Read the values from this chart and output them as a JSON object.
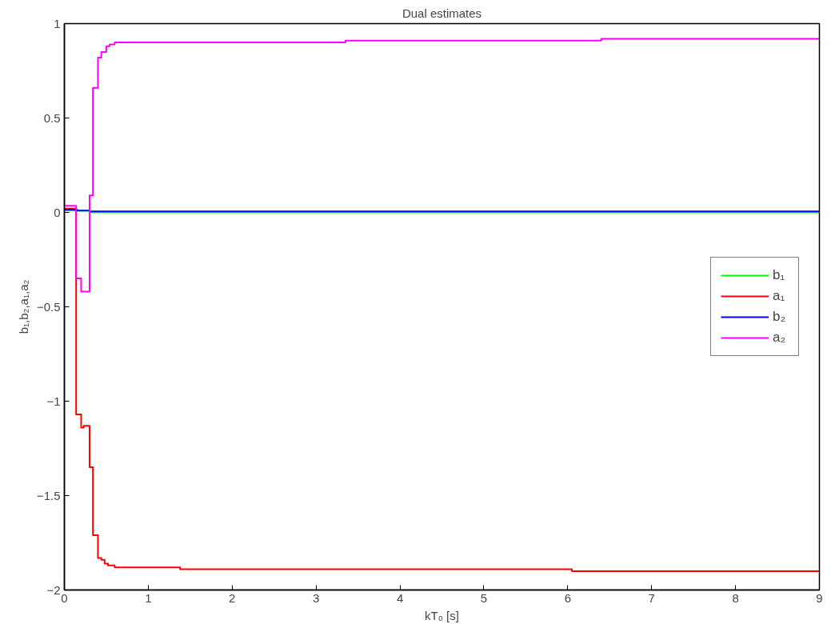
{
  "chart_data": {
    "type": "step",
    "title": "Dual estimates",
    "xlabel": "kT₀ [s]",
    "ylabel": "b₁,b₂,a₁,a₂",
    "xlim": [
      0,
      9
    ],
    "ylim": [
      -2,
      1
    ],
    "xticks": [
      0,
      1,
      2,
      3,
      4,
      5,
      6,
      7,
      8,
      9
    ],
    "yticks": [
      -2,
      -1.5,
      -1,
      -0.5,
      0,
      0.5,
      1
    ],
    "grid": false,
    "legend": "right",
    "line_style": "solid",
    "marker": "none",
    "series": [
      {
        "name": "b₁",
        "color": "#00ff00",
        "x": [
          0,
          0.3,
          9
        ],
        "values": [
          0.01,
          0.0,
          0.0
        ]
      },
      {
        "name": "a₁",
        "color": "#ff0000",
        "x": [
          0,
          0.14,
          0.2,
          0.23,
          0.3,
          0.34,
          0.4,
          0.44,
          0.48,
          0.52,
          0.6,
          1.38,
          6.05,
          9
        ],
        "values": [
          0.02,
          -1.07,
          -1.14,
          -1.13,
          -1.35,
          -1.71,
          -1.83,
          -1.84,
          -1.86,
          -1.87,
          -1.88,
          -1.89,
          -1.9,
          -1.9
        ]
      },
      {
        "name": "b₂",
        "color": "#0000ff",
        "x": [
          0,
          0.15,
          0.3,
          9
        ],
        "values": [
          0.015,
          0.01,
          0.005,
          0.005
        ]
      },
      {
        "name": "a₂",
        "color": "#ff00ff",
        "x": [
          0,
          0.14,
          0.2,
          0.3,
          0.34,
          0.4,
          0.44,
          0.5,
          0.54,
          0.6,
          3.35,
          6.4,
          9
        ],
        "values": [
          0.035,
          -0.35,
          -0.42,
          0.09,
          0.66,
          0.82,
          0.85,
          0.88,
          0.89,
          0.9,
          0.91,
          0.92,
          0.92
        ]
      }
    ]
  }
}
